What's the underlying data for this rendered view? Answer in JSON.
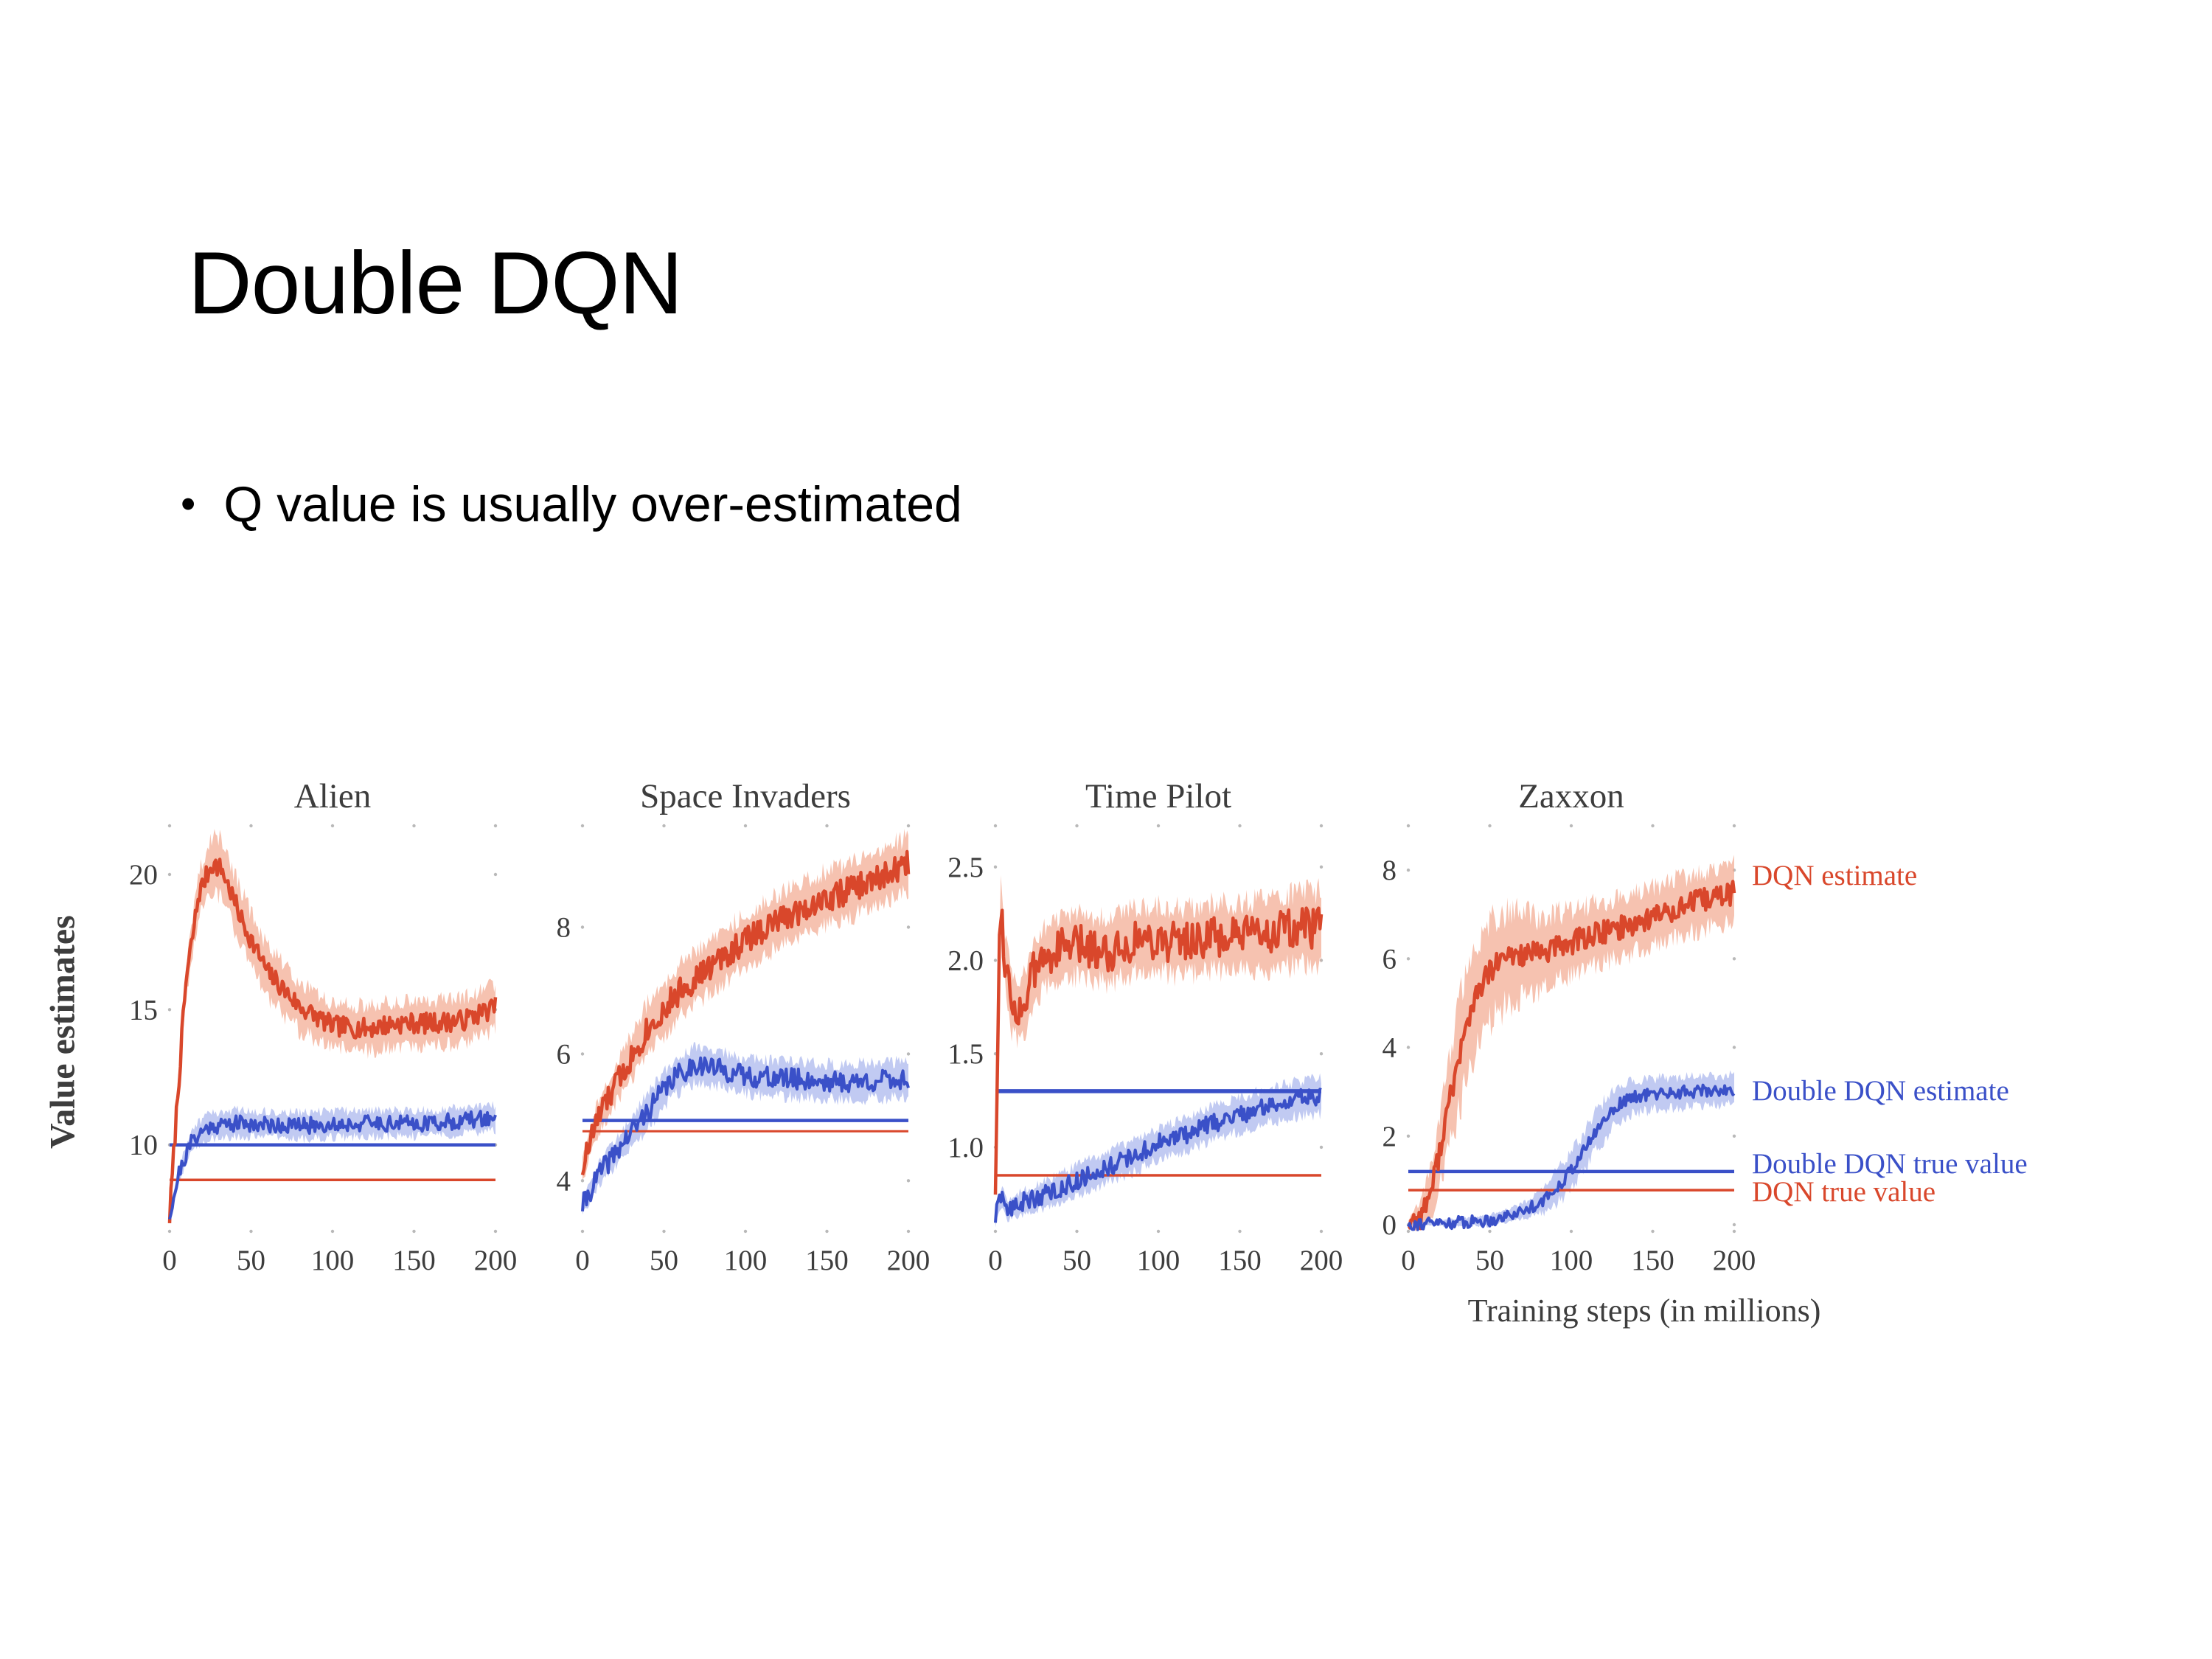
{
  "slide": {
    "title": "Double DQN",
    "bullet": "Q value is usually over-estimated"
  },
  "figure": {
    "ylabel": "Value estimates",
    "xlabel": "Training steps (in millions)"
  },
  "colors": {
    "dqn": "#d9472b",
    "dqn_band": "#f2a88e",
    "ddqn": "#3a50c8",
    "ddqn_band": "#a6b4ec",
    "text": "#3d3d3d"
  },
  "chart_data": [
    {
      "type": "line",
      "title": "Alien",
      "xlim": [
        0,
        200
      ],
      "xticks": [
        "0",
        "50",
        "100",
        "150",
        "200"
      ],
      "ylim": [
        6.8,
        21.8
      ],
      "yticks": [
        "10",
        "15",
        "20"
      ],
      "series": [
        {
          "name": "DQN estimate",
          "color": "dqn",
          "band_color": "dqn_band",
          "lw": 4.5,
          "noise": 0.38,
          "seed": 7,
          "points": [
            [
              0,
              7.3
            ],
            [
              4,
              11
            ],
            [
              10,
              16
            ],
            [
              18,
              19.3
            ],
            [
              26,
              20.4
            ],
            [
              32,
              20.2
            ],
            [
              45,
              18.2
            ],
            [
              60,
              16.4
            ],
            [
              80,
              15.1
            ],
            [
              100,
              14.4
            ],
            [
              120,
              14.3
            ],
            [
              140,
              14.5
            ],
            [
              160,
              14.5
            ],
            [
              180,
              14.6
            ],
            [
              200,
              15.1
            ]
          ],
          "band": [
            [
              0,
              0.35
            ],
            [
              15,
              0.9
            ],
            [
              30,
              1.35
            ],
            [
              60,
              1.2
            ],
            [
              100,
              1.05
            ],
            [
              200,
              1.05
            ]
          ]
        },
        {
          "name": "Double DQN estimate",
          "color": "ddqn",
          "band_color": "ddqn_band",
          "lw": 4,
          "noise": 0.3,
          "seed": 21,
          "points": [
            [
              0,
              7.4
            ],
            [
              6,
              9.0
            ],
            [
              14,
              10.2
            ],
            [
              25,
              10.7
            ],
            [
              40,
              10.8
            ],
            [
              80,
              10.7
            ],
            [
              120,
              10.8
            ],
            [
              160,
              10.8
            ],
            [
              200,
              11.0
            ]
          ],
          "band": [
            [
              0,
              0.25
            ],
            [
              20,
              0.6
            ],
            [
              200,
              0.6
            ]
          ]
        }
      ],
      "hlines": [
        {
          "name": "Double DQN true value",
          "color": "ddqn",
          "y": 10.0,
          "width": 4.5
        },
        {
          "name": "DQN true value",
          "color": "dqn",
          "y": 8.7,
          "width": 3.5
        }
      ]
    },
    {
      "type": "line",
      "title": "Space Invaders",
      "xlim": [
        0,
        200
      ],
      "xticks": [
        "0",
        "50",
        "100",
        "150",
        "200"
      ],
      "ylim": [
        3.2,
        9.6
      ],
      "yticks": [
        "4",
        "6",
        "8"
      ],
      "series": [
        {
          "name": "DQN estimate",
          "color": "dqn",
          "band_color": "dqn_band",
          "lw": 4.5,
          "noise": 0.22,
          "seed": 33,
          "points": [
            [
              0,
              4.2
            ],
            [
              8,
              4.9
            ],
            [
              20,
              5.5
            ],
            [
              40,
              6.4
            ],
            [
              60,
              7.0
            ],
            [
              80,
              7.4
            ],
            [
              100,
              7.8
            ],
            [
              120,
              8.1
            ],
            [
              140,
              8.35
            ],
            [
              160,
              8.55
            ],
            [
              180,
              8.75
            ],
            [
              200,
              9.0
            ]
          ],
          "band": [
            [
              0,
              0.25
            ],
            [
              40,
              0.5
            ],
            [
              200,
              0.55
            ]
          ]
        },
        {
          "name": "Double DQN estimate",
          "color": "ddqn",
          "band_color": "ddqn_band",
          "lw": 4,
          "noise": 0.17,
          "seed": 41,
          "points": [
            [
              0,
              3.6
            ],
            [
              10,
              4.1
            ],
            [
              25,
              4.6
            ],
            [
              40,
              5.1
            ],
            [
              55,
              5.6
            ],
            [
              70,
              5.85
            ],
            [
              85,
              5.75
            ],
            [
              100,
              5.65
            ],
            [
              130,
              5.6
            ],
            [
              160,
              5.55
            ],
            [
              200,
              5.6
            ]
          ],
          "band": [
            [
              0,
              0.18
            ],
            [
              40,
              0.35
            ],
            [
              200,
              0.35
            ]
          ]
        }
      ],
      "hlines": [
        {
          "name": "Double DQN true value",
          "color": "ddqn",
          "y": 4.95,
          "width": 4.5
        },
        {
          "name": "DQN true value",
          "color": "dqn",
          "y": 4.78,
          "width": 3
        }
      ]
    },
    {
      "type": "line",
      "title": "Time Pilot",
      "xlim": [
        0,
        200
      ],
      "xticks": [
        "0",
        "50",
        "100",
        "150",
        "200"
      ],
      "ylim": [
        0.55,
        2.72
      ],
      "yticks": [
        "1.0",
        "1.5",
        "2.0",
        "2.5"
      ],
      "series": [
        {
          "name": "DQN estimate",
          "color": "dqn",
          "band_color": "dqn_band",
          "lw": 4.5,
          "noise": 0.11,
          "seed": 55,
          "points": [
            [
              0,
              0.8
            ],
            [
              3,
              2.35
            ],
            [
              6,
              2.0
            ],
            [
              10,
              1.78
            ],
            [
              16,
              1.72
            ],
            [
              24,
              1.95
            ],
            [
              35,
              2.05
            ],
            [
              50,
              2.08
            ],
            [
              70,
              2.05
            ],
            [
              90,
              2.12
            ],
            [
              110,
              2.1
            ],
            [
              130,
              2.12
            ],
            [
              150,
              2.12
            ],
            [
              170,
              2.15
            ],
            [
              200,
              2.18
            ]
          ],
          "band": [
            [
              0,
              0.1
            ],
            [
              10,
              0.2
            ],
            [
              200,
              0.24
            ]
          ]
        },
        {
          "name": "Double DQN estimate",
          "color": "ddqn",
          "band_color": "ddqn_band",
          "lw": 4,
          "noise": 0.05,
          "seed": 63,
          "points": [
            [
              0,
              0.62
            ],
            [
              4,
              0.74
            ],
            [
              8,
              0.66
            ],
            [
              15,
              0.7
            ],
            [
              25,
              0.73
            ],
            [
              40,
              0.78
            ],
            [
              55,
              0.84
            ],
            [
              70,
              0.9
            ],
            [
              85,
              0.95
            ],
            [
              100,
              1.02
            ],
            [
              120,
              1.08
            ],
            [
              140,
              1.15
            ],
            [
              160,
              1.2
            ],
            [
              180,
              1.25
            ],
            [
              200,
              1.28
            ]
          ],
          "band": [
            [
              0,
              0.06
            ],
            [
              40,
              0.1
            ],
            [
              200,
              0.12
            ]
          ]
        }
      ],
      "hlines": [
        {
          "name": "Double DQN true value",
          "color": "ddqn",
          "y": 1.3,
          "width": 5.5
        },
        {
          "name": "DQN true value",
          "color": "dqn",
          "y": 0.85,
          "width": 3.5
        }
      ]
    },
    {
      "type": "line",
      "title": "Zaxxon",
      "xlim": [
        0,
        200
      ],
      "xticks": [
        "0",
        "50",
        "100",
        "150",
        "200"
      ],
      "ylim": [
        -0.15,
        9.0
      ],
      "yticks": [
        "0",
        "2",
        "4",
        "6",
        "8"
      ],
      "series": [
        {
          "name": "DQN estimate",
          "color": "dqn",
          "band_color": "dqn_band",
          "lw": 4.5,
          "noise": 0.28,
          "seed": 77,
          "points": [
            [
              0,
              0.05
            ],
            [
              8,
              0.2
            ],
            [
              15,
              0.9
            ],
            [
              22,
              2.2
            ],
            [
              30,
              3.6
            ],
            [
              38,
              4.8
            ],
            [
              46,
              5.5
            ],
            [
              55,
              5.9
            ],
            [
              65,
              6.1
            ],
            [
              80,
              6.1
            ],
            [
              95,
              6.3
            ],
            [
              110,
              6.5
            ],
            [
              130,
              6.7
            ],
            [
              150,
              6.95
            ],
            [
              170,
              7.2
            ],
            [
              200,
              7.5
            ]
          ],
          "band": [
            [
              0,
              0.05
            ],
            [
              15,
              0.8
            ],
            [
              30,
              1.5
            ],
            [
              55,
              1.4
            ],
            [
              80,
              1.0
            ],
            [
              120,
              0.85
            ],
            [
              200,
              0.8
            ]
          ]
        },
        {
          "name": "Double DQN estimate",
          "color": "ddqn",
          "band_color": "ddqn_band",
          "lw": 4,
          "noise": 0.14,
          "seed": 91,
          "points": [
            [
              0,
              0.02
            ],
            [
              30,
              0.05
            ],
            [
              50,
              0.1
            ],
            [
              70,
              0.3
            ],
            [
              85,
              0.6
            ],
            [
              95,
              1.0
            ],
            [
              105,
              1.5
            ],
            [
              115,
              2.1
            ],
            [
              125,
              2.6
            ],
            [
              135,
              2.85
            ],
            [
              150,
              2.95
            ],
            [
              170,
              3.0
            ],
            [
              200,
              3.05
            ]
          ],
          "band": [
            [
              0,
              0.03
            ],
            [
              70,
              0.2
            ],
            [
              95,
              0.5
            ],
            [
              120,
              0.55
            ],
            [
              140,
              0.45
            ],
            [
              200,
              0.4
            ]
          ]
        }
      ],
      "hlines": [
        {
          "name": "Double DQN true value",
          "color": "ddqn",
          "y": 1.2,
          "width": 4.5
        },
        {
          "name": "DQN true value",
          "color": "dqn",
          "y": 0.78,
          "width": 3.5
        }
      ],
      "annotations": [
        {
          "text": "DQN estimate",
          "color": "dqn",
          "y": 7.85
        },
        {
          "text": "Double DQN estimate",
          "color": "ddqn",
          "y": 3.0
        },
        {
          "text": "Double DQN true value",
          "color": "ddqn",
          "y": 1.35
        },
        {
          "text": "DQN true value",
          "color": "dqn",
          "y": 0.72
        }
      ]
    }
  ]
}
